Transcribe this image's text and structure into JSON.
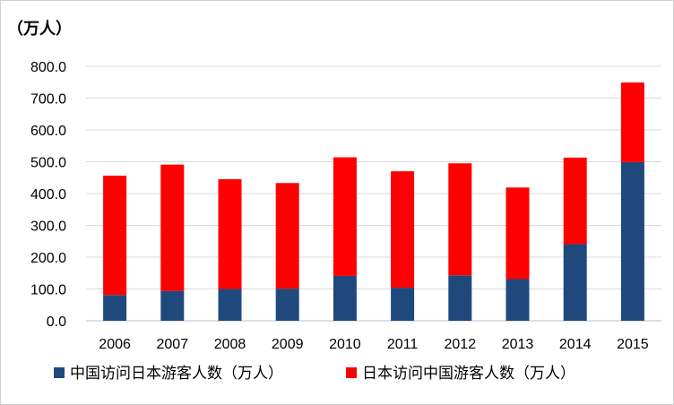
{
  "chart_data": {
    "type": "bar",
    "stacked": true,
    "unit_label": "（万人）",
    "categories": [
      "2006",
      "2007",
      "2008",
      "2009",
      "2010",
      "2011",
      "2012",
      "2013",
      "2014",
      "2015"
    ],
    "series": [
      {
        "name": "中国访问日本游客人数（万人）",
        "color": "#1f497d",
        "values": [
          81,
          94,
          100,
          101,
          141,
          104,
          143,
          131,
          241,
          499
        ]
      },
      {
        "name": "日本访问中国游客人数（万人）",
        "color": "#ff0000",
        "values": [
          375,
          397,
          345,
          332,
          373,
          366,
          352,
          288,
          272,
          250
        ]
      }
    ],
    "ylim": [
      0,
      800
    ],
    "yticks": [
      "0.0",
      "100.0",
      "200.0",
      "300.0",
      "400.0",
      "500.0",
      "600.0",
      "700.0",
      "800.0"
    ],
    "grid": true,
    "legend_position": "bottom"
  }
}
